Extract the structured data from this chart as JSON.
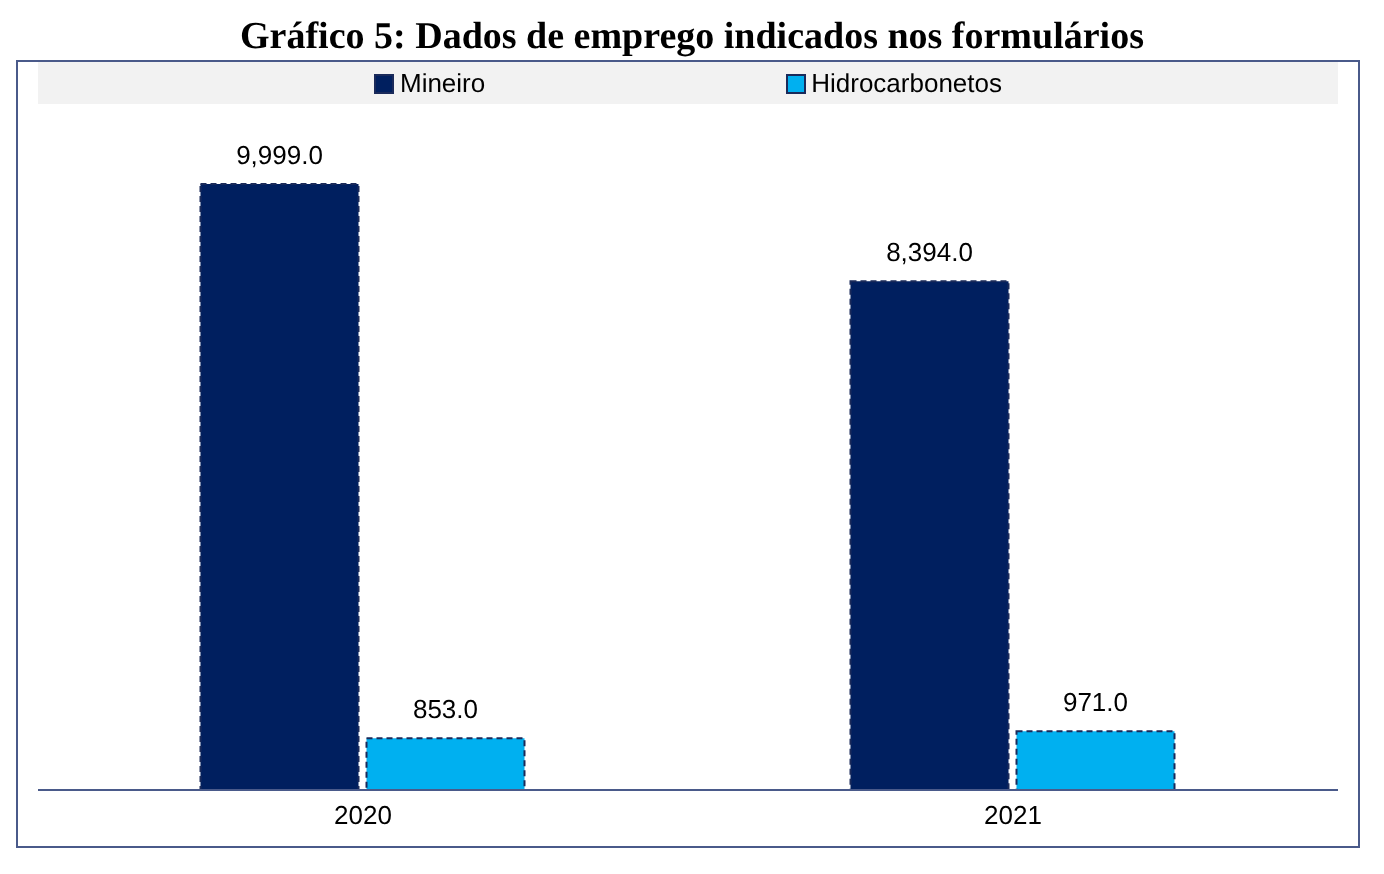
{
  "chart_data": {
    "type": "bar",
    "title": "Gráfico 5: Dados de emprego indicados nos formulários",
    "categories": [
      "2020",
      "2021"
    ],
    "series": [
      {
        "name": "Mineiro",
        "color": "#001f5f",
        "values": [
          9999,
          8394
        ],
        "value_labels": [
          "9,999.0",
          "8,394.0"
        ]
      },
      {
        "name": "Hidrocarbonetos",
        "color": "#00b0f0",
        "values": [
          853,
          971
        ],
        "value_labels": [
          "853.0",
          "971.0"
        ]
      }
    ],
    "legend": "top",
    "tick_labels": "x"
  }
}
